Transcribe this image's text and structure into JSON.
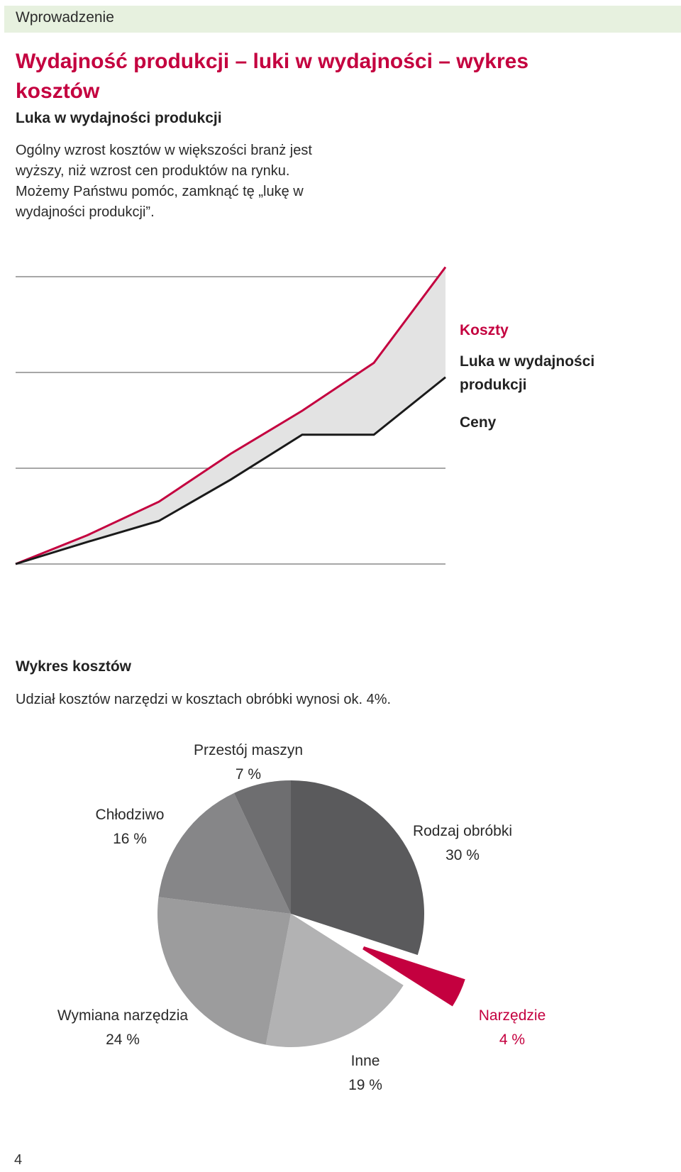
{
  "header": {
    "section": "Wprowadzenie"
  },
  "title": "Wydajność produkcji – luki w wydajności – wykres kosztów",
  "gap": {
    "heading": "Luka w wydajności produkcji",
    "text": "Ogólny wzrost kosztów w większości branż jest wyższy, niż wzrost cen produktów na rynku. Możemy Państwu pomóc, zamknąć tę „lukę w wydajności produkcji”."
  },
  "chart_data": [
    {
      "type": "line",
      "x": [
        0,
        1,
        2,
        3,
        4,
        5,
        6
      ],
      "series": [
        {
          "name": "Koszty",
          "color": "#c4003f",
          "values": [
            0,
            0.3,
            0.65,
            1.15,
            1.6,
            2.1,
            3.1
          ]
        },
        {
          "name": "Ceny",
          "color": "#1a1a1a",
          "values": [
            0,
            0.23,
            0.45,
            0.88,
            1.35,
            1.35,
            1.95
          ]
        }
      ],
      "band_label": "Luka w wydajności produkcji",
      "band_color": "#e3e3e3",
      "ylim": [
        0,
        3
      ],
      "grid": true
    },
    {
      "type": "pie",
      "slices": [
        {
          "label": "Rodzaj obróbki",
          "value": 30,
          "percent": "30 %",
          "color": "#5a5a5c",
          "exploded": false
        },
        {
          "label": "Narzędzie",
          "value": 4,
          "percent": "4 %",
          "color": "#c4003f",
          "exploded": true
        },
        {
          "label": "Inne",
          "value": 19,
          "percent": "19 %",
          "color": "#b2b2b3",
          "exploded": false
        },
        {
          "label": "Wymiana narzędzia",
          "value": 24,
          "percent": "24 %",
          "color": "#9c9c9d",
          "exploded": false
        },
        {
          "label": "Chłodziwo",
          "value": 16,
          "percent": "16 %",
          "color": "#868688",
          "exploded": false
        },
        {
          "label": "Przestój maszyn",
          "value": 7,
          "percent": "7 %",
          "color": "#6e6e70",
          "exploded": false
        }
      ]
    }
  ],
  "costs": {
    "heading": "Wykres kosztów",
    "text": "Udział kosztów narzędzi w kosztach obróbki wynosi ok. 4%."
  },
  "page_number": "4"
}
